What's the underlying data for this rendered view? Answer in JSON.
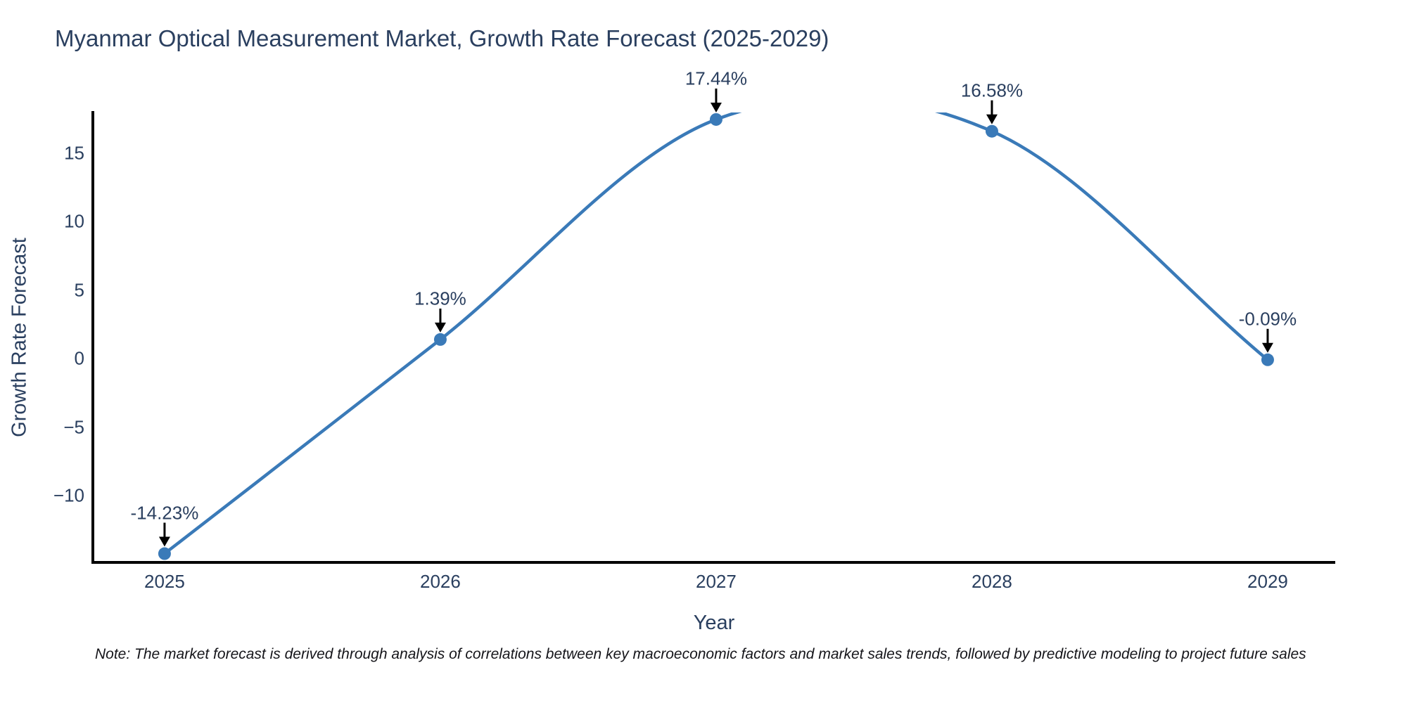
{
  "title": "Myanmar Optical Measurement Market, Growth Rate Forecast (2025-2029)",
  "note": "Note: The market forecast is derived through analysis of correlations between key macroeconomic factors and market sales trends, followed by predictive modeling to project future sales",
  "chart_data": {
    "type": "line",
    "title": "Myanmar Optical Measurement Market, Growth Rate Forecast (2025-2029)",
    "xlabel": "Year",
    "ylabel": "Growth Rate Forecast",
    "x": [
      2025,
      2026,
      2027,
      2028,
      2029
    ],
    "values": [
      -14.23,
      1.39,
      17.44,
      16.58,
      -0.09
    ],
    "point_labels": [
      "-14.23%",
      "1.39%",
      "17.44%",
      "16.58%",
      "-0.09%"
    ],
    "x_tick_labels": [
      "2025",
      "2026",
      "2027",
      "2028",
      "2029"
    ],
    "y_tick_labels": [
      "15",
      "10",
      "5",
      "0",
      "−5",
      "−10"
    ],
    "y_tick_values": [
      15,
      10,
      5,
      0,
      -5,
      -10
    ],
    "xlim": [
      2024.74,
      2029.245
    ],
    "ylim": [
      -14.87,
      17.95
    ],
    "line_shape": "spline",
    "grid": false,
    "legend": "none",
    "markers": true,
    "annotation_arrows": true,
    "colors": {
      "line": "#3a7ab8",
      "marker": "#3a7ab8",
      "axis": "#000000",
      "arrow": "#000000",
      "text": "#2a3f5f",
      "background": "#ffffff"
    }
  }
}
